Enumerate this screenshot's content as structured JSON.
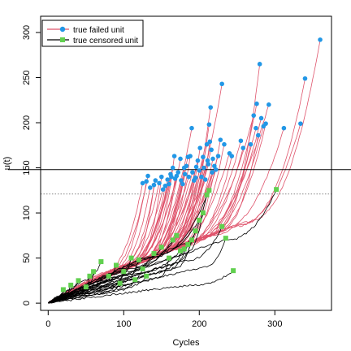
{
  "chart_data": {
    "type": "line",
    "title": "",
    "xlabel": "Cycles",
    "ylabel": "u(t)",
    "xlim": [
      -10,
      375
    ],
    "ylim": [
      -8,
      318
    ],
    "xticks": [
      0,
      100,
      200,
      300
    ],
    "yticks": [
      0,
      50,
      100,
      150,
      200,
      250,
      300
    ],
    "grid": false,
    "legend": {
      "position": "top-left",
      "entries": [
        {
          "label": "true failed unit",
          "line_color": "#DF536B",
          "marker": "circle",
          "marker_color": "#2297E6"
        },
        {
          "label": "true censored unit",
          "line_color": "#000000",
          "marker": "square",
          "marker_color": "#61D04F"
        }
      ]
    },
    "reference_lines": [
      {
        "y": 148,
        "style": "solid",
        "color": "#000000"
      },
      {
        "y": 121,
        "style": "dotted",
        "color": "#888888"
      }
    ],
    "failed_units_endpoints": [
      [
        125,
        133
      ],
      [
        130,
        135
      ],
      [
        132,
        141
      ],
      [
        135,
        128
      ],
      [
        140,
        131
      ],
      [
        142,
        136
      ],
      [
        147,
        133
      ],
      [
        150,
        140
      ],
      [
        152,
        126
      ],
      [
        155,
        130
      ],
      [
        158,
        137
      ],
      [
        160,
        132
      ],
      [
        162,
        143
      ],
      [
        163,
        140
      ],
      [
        165,
        150
      ],
      [
        167,
        163
      ],
      [
        168,
        138
      ],
      [
        170,
        141
      ],
      [
        172,
        145
      ],
      [
        175,
        160
      ],
      [
        176,
        136
      ],
      [
        178,
        132
      ],
      [
        180,
        150
      ],
      [
        181,
        143
      ],
      [
        183,
        152
      ],
      [
        185,
        162
      ],
      [
        186,
        140
      ],
      [
        188,
        163
      ],
      [
        190,
        194
      ],
      [
        191,
        145
      ],
      [
        193,
        136
      ],
      [
        195,
        139
      ],
      [
        196,
        151
      ],
      [
        198,
        158
      ],
      [
        200,
        147
      ],
      [
        201,
        172
      ],
      [
        203,
        140
      ],
      [
        205,
        162
      ],
      [
        206,
        150
      ],
      [
        208,
        137
      ],
      [
        210,
        176
      ],
      [
        211,
        158
      ],
      [
        212,
        154
      ],
      [
        213,
        198
      ],
      [
        214,
        179
      ],
      [
        215,
        217
      ],
      [
        216,
        170
      ],
      [
        217,
        145
      ],
      [
        218,
        160
      ],
      [
        220,
        152
      ],
      [
        222,
        148
      ],
      [
        225,
        163
      ],
      [
        228,
        181
      ],
      [
        230,
        243
      ],
      [
        233,
        176
      ],
      [
        240,
        166
      ],
      [
        243,
        163
      ],
      [
        255,
        180
      ],
      [
        258,
        172
      ],
      [
        268,
        176
      ],
      [
        272,
        208
      ],
      [
        275,
        194
      ],
      [
        276,
        221
      ],
      [
        278,
        186
      ],
      [
        280,
        265
      ],
      [
        282,
        205
      ],
      [
        285,
        196
      ],
      [
        288,
        199
      ],
      [
        292,
        220
      ],
      [
        312,
        194
      ],
      [
        334,
        199
      ],
      [
        340,
        249
      ],
      [
        360,
        292
      ]
    ],
    "censored_units_endpoints": [
      [
        20,
        15
      ],
      [
        30,
        20
      ],
      [
        40,
        25
      ],
      [
        50,
        18
      ],
      [
        55,
        30
      ],
      [
        60,
        35
      ],
      [
        70,
        46
      ],
      [
        80,
        30
      ],
      [
        90,
        42
      ],
      [
        95,
        22
      ],
      [
        100,
        35
      ],
      [
        110,
        50
      ],
      [
        115,
        26
      ],
      [
        120,
        48
      ],
      [
        125,
        38
      ],
      [
        130,
        30
      ],
      [
        140,
        55
      ],
      [
        150,
        62
      ],
      [
        160,
        50
      ],
      [
        165,
        70
      ],
      [
        170,
        75
      ],
      [
        175,
        58
      ],
      [
        180,
        60
      ],
      [
        185,
        65
      ],
      [
        190,
        70
      ],
      [
        195,
        80
      ],
      [
        200,
        92
      ],
      [
        205,
        100
      ],
      [
        210,
        120
      ],
      [
        213,
        125
      ],
      [
        230,
        85
      ],
      [
        235,
        72
      ],
      [
        245,
        36
      ],
      [
        302,
        126
      ]
    ]
  }
}
